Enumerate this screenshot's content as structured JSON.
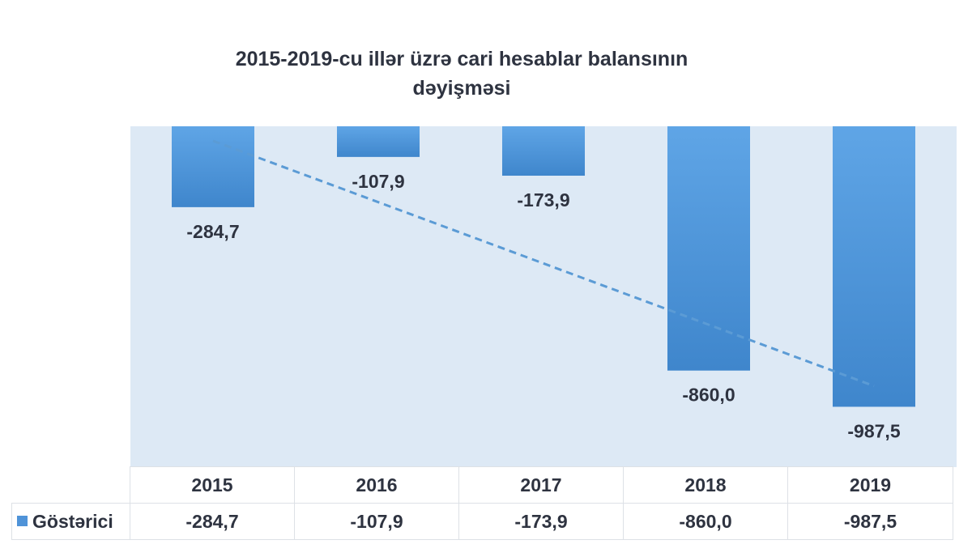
{
  "chart_data": {
    "type": "bar",
    "title_lines": [
      "2015-2019-cu illər üzrə cari hesablar balansının",
      "dəyişməsi"
    ],
    "categories": [
      "2015",
      "2016",
      "2017",
      "2018",
      "2019"
    ],
    "series": [
      {
        "name": "Göstərici",
        "values": [
          -284.7,
          -107.9,
          -173.9,
          -860.0,
          -987.5
        ],
        "labels": [
          "-284,7",
          "-107,9",
          "-173,9",
          "-860,0",
          "-987,5"
        ]
      }
    ],
    "ylim": [
      -1200,
      0
    ],
    "trendline": "linear",
    "data_table": true,
    "legend": "in data table",
    "grid": false,
    "colors": {
      "bar": "#4f93d8",
      "plot_area": "#dde9f5",
      "trendline": "#5b9bd5"
    }
  }
}
